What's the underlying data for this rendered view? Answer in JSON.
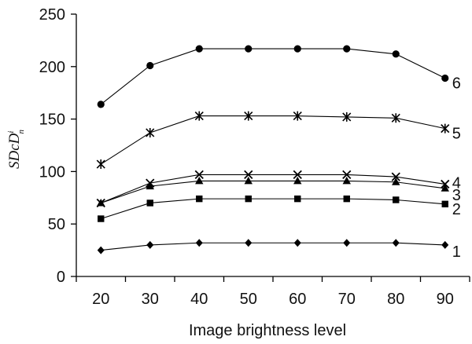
{
  "chart_data": {
    "type": "line",
    "xlabel": "Image brightness level",
    "ylabel": {
      "base": "SDcD",
      "sup": "i",
      "sub": "n"
    },
    "x": [
      20,
      30,
      40,
      50,
      60,
      70,
      80,
      90
    ],
    "xlim": [
      15,
      95
    ],
    "ylim": [
      0,
      250
    ],
    "yticks": [
      0,
      50,
      100,
      150,
      200,
      250
    ],
    "grid": false,
    "series": [
      {
        "label": "1",
        "marker": "diamond",
        "values": [
          25,
          30,
          32,
          32,
          32,
          32,
          32,
          30
        ]
      },
      {
        "label": "2",
        "marker": "square",
        "values": [
          55,
          70,
          74,
          74,
          74,
          74,
          73,
          69
        ]
      },
      {
        "label": "3",
        "marker": "triangle",
        "values": [
          70,
          86,
          91,
          91,
          91,
          91,
          90,
          84
        ]
      },
      {
        "label": "4",
        "marker": "cross",
        "values": [
          70,
          89,
          97,
          97,
          97,
          97,
          95,
          88
        ]
      },
      {
        "label": "5",
        "marker": "asterisk",
        "values": [
          107,
          137,
          153,
          153,
          153,
          152,
          151,
          141
        ]
      },
      {
        "label": "6",
        "marker": "circle",
        "values": [
          164,
          201,
          217,
          217,
          217,
          217,
          212,
          189
        ]
      }
    ]
  }
}
